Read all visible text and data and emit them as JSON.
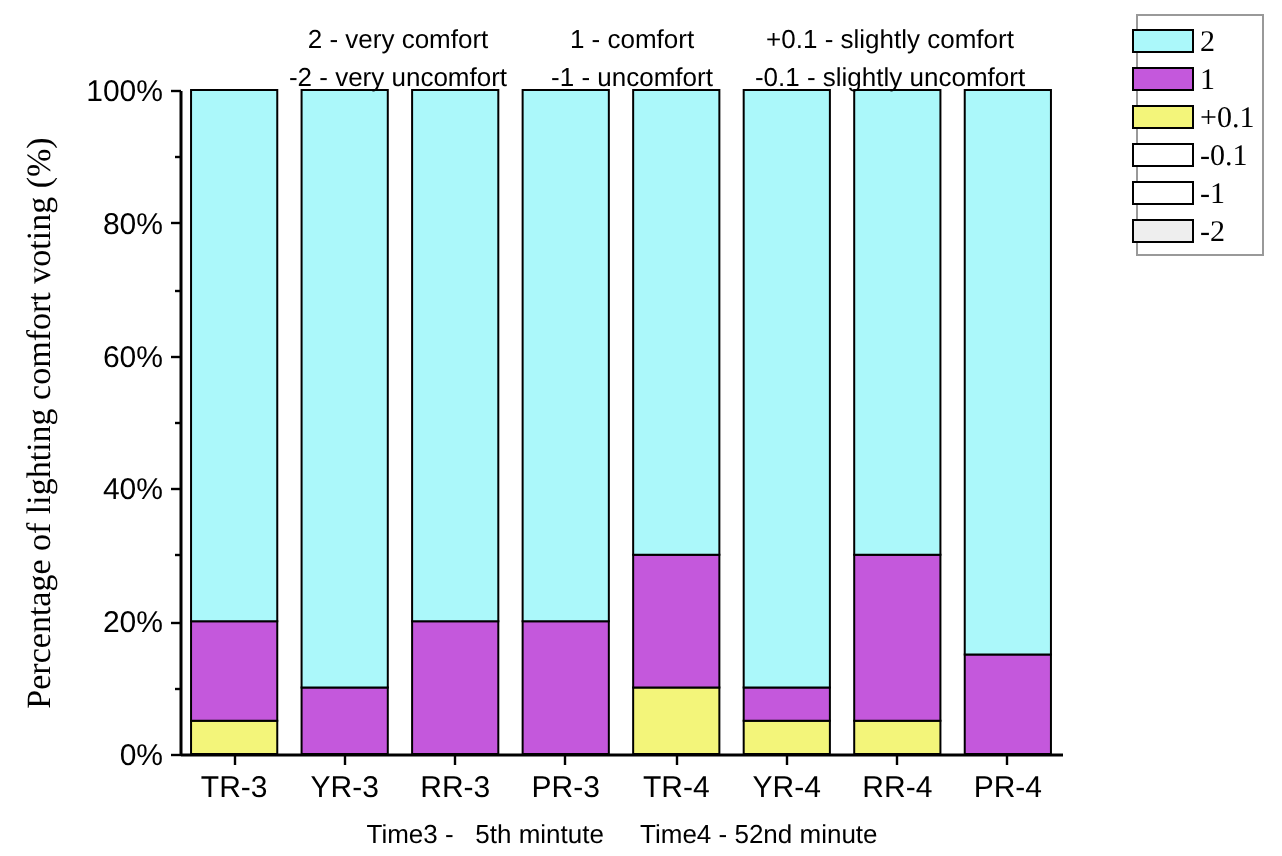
{
  "chart_data": {
    "type": "bar",
    "stacked": true,
    "categories": [
      "TR-3",
      "YR-3",
      "RR-3",
      "PR-3",
      "TR-4",
      "YR-4",
      "RR-4",
      "PR-4"
    ],
    "series": [
      {
        "name": "-2",
        "color": "#eeeeee",
        "values": [
          0,
          0,
          0,
          0,
          0,
          0,
          0,
          0
        ]
      },
      {
        "name": "-1",
        "color": "#ffffff",
        "values": [
          0,
          0,
          0,
          0,
          0,
          0,
          0,
          0
        ]
      },
      {
        "name": "-0.1",
        "color": "#ffffff",
        "values": [
          0,
          0,
          0,
          0,
          0,
          0,
          0,
          0
        ]
      },
      {
        "name": "+0.1",
        "color": "#f3f57a",
        "values": [
          5,
          0,
          0,
          0,
          10,
          5,
          5,
          0
        ]
      },
      {
        "name": "1",
        "color": "#c458dc",
        "values": [
          15,
          10,
          20,
          20,
          20,
          5,
          25,
          15
        ]
      },
      {
        "name": "2",
        "color": "#abf8fa",
        "values": [
          80,
          90,
          80,
          80,
          70,
          90,
          70,
          85
        ]
      }
    ],
    "ylim": [
      0,
      100
    ],
    "yticks": [
      {
        "value": 0,
        "label": "0%"
      },
      {
        "value": 10,
        "label": null
      },
      {
        "value": 20,
        "label": "20%"
      },
      {
        "value": 30,
        "label": null
      },
      {
        "value": 40,
        "label": "40%"
      },
      {
        "value": 50,
        "label": null
      },
      {
        "value": 60,
        "label": "60%"
      },
      {
        "value": 70,
        "label": null
      },
      {
        "value": 80,
        "label": "80%"
      },
      {
        "value": 90,
        "label": null
      },
      {
        "value": 100,
        "label": "100%"
      }
    ],
    "ylabel": "Percentage of lighting comfort voting (%)",
    "xlabel": "Time3 -   5th mintute     Time4 - 52nd minute",
    "annotations": [
      "2 - very comfort",
      "1 - comfort",
      "+0.1 - slightly comfort",
      "-2 - very uncomfort",
      "-1 - uncomfort",
      "-0.1 - slightly uncomfort"
    ],
    "legend": "top right"
  }
}
